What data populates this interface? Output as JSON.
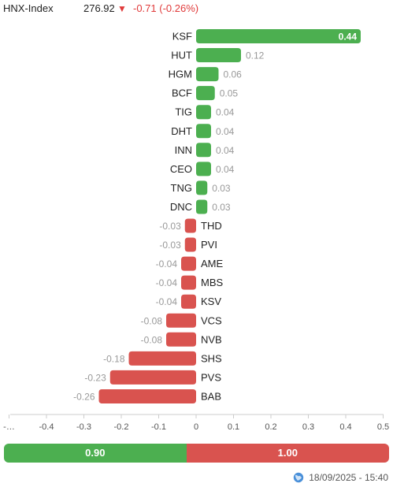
{
  "header": {
    "index_name": "HNX-Index",
    "index_value": "276.92",
    "change_icon": "triangle-down-icon",
    "change_text": "-0.71 (-0.26%)"
  },
  "colors": {
    "positive": "#4caf50",
    "negative": "#d9534f",
    "down_text": "#e03a3a"
  },
  "chart_data": {
    "type": "bar",
    "orientation": "horizontal",
    "categories": [
      "KSF",
      "HUT",
      "HGM",
      "BCF",
      "TIG",
      "DHT",
      "INN",
      "CEO",
      "TNG",
      "DNC",
      "THD",
      "PVI",
      "AME",
      "MBS",
      "KSV",
      "VCS",
      "NVB",
      "SHS",
      "PVS",
      "BAB"
    ],
    "values": [
      0.44,
      0.12,
      0.06,
      0.05,
      0.04,
      0.04,
      0.04,
      0.04,
      0.03,
      0.03,
      -0.03,
      -0.03,
      -0.04,
      -0.04,
      -0.04,
      -0.08,
      -0.08,
      -0.18,
      -0.23,
      -0.26
    ],
    "value_labels": [
      "0.44",
      "0.12",
      "0.06",
      "0.05",
      "0.04",
      "0.04",
      "0.04",
      "0.04",
      "0.03",
      "0.03",
      "-0.03",
      "-0.03",
      "-0.04",
      "-0.04",
      "-0.04",
      "-0.08",
      "-0.08",
      "-0.18",
      "-0.23",
      "-0.26"
    ],
    "xlim": [
      -0.5,
      0.5
    ],
    "x_ticks": [
      -0.5,
      -0.4,
      -0.3,
      -0.2,
      -0.1,
      0,
      0.1,
      0.2,
      0.3,
      0.4,
      0.5
    ],
    "x_tick_labels": [
      "-…",
      "-0.4",
      "-0.3",
      "-0.2",
      "-0.1",
      "0",
      "0.1",
      "0.2",
      "0.3",
      "0.4",
      "0.5"
    ],
    "grid": false
  },
  "summary": {
    "positive_total": 0.9,
    "negative_total": 1.0,
    "positive_label": "0.90",
    "negative_label": "1.00"
  },
  "footer": {
    "icon": "globe-icon",
    "timestamp": "18/09/2025 - 15:40"
  }
}
